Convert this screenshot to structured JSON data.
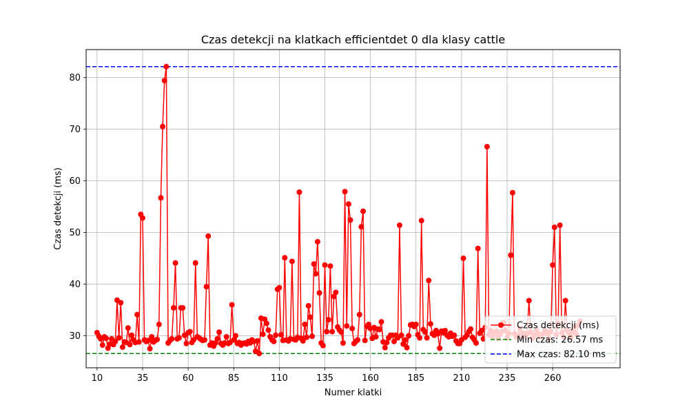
{
  "chart_data": {
    "type": "line",
    "title": "Czas detekcji na klatkach efficientdet 0 dla klasy cattle",
    "xlabel": "Numer klatki",
    "ylabel": "Czas detekcji (ms)",
    "xlim": [
      4,
      297
    ],
    "ylim": [
      23.8,
      85.4
    ],
    "xticks": [
      10,
      35,
      60,
      85,
      110,
      135,
      160,
      185,
      210,
      235,
      260
    ],
    "yticks": [
      30,
      40,
      50,
      60,
      70,
      80
    ],
    "grid": true,
    "legend_position": "lower-right",
    "series": [
      {
        "name": "Czas detekcji (ms)",
        "color": "#ff0000",
        "marker": "circle",
        "x_start": 10,
        "values": [
          30.6,
          29.9,
          29.4,
          28.2,
          29.8,
          29.5,
          27.6,
          28.4,
          29.4,
          28.3,
          28.9,
          36.9,
          29.6,
          36.4,
          27.8,
          28.8,
          28.7,
          31.5,
          28.3,
          30.1,
          29.2,
          28.7,
          34.1,
          28.8,
          53.5,
          52.8,
          29.2,
          28.9,
          29.1,
          27.5,
          29.8,
          28.8,
          29.1,
          29.3,
          32.2,
          56.7,
          70.5,
          79.4,
          82.1,
          28.6,
          29.1,
          29.4,
          35.4,
          44.1,
          29.4,
          29.6,
          35.4,
          35.4,
          30.1,
          28.5,
          30.6,
          30.8,
          28.7,
          29.2,
          44.1,
          29.8,
          29.6,
          29.3,
          29.1,
          29.2,
          39.5,
          49.3,
          28.2,
          28.6,
          28.0,
          28.6,
          29.4,
          30.7,
          28.5,
          28.2,
          28.6,
          29.8,
          28.5,
          28.7,
          36.0,
          29.2,
          30.0,
          28.5,
          28.7,
          28.2,
          28.5,
          28.6,
          28.4,
          28.9,
          28.6,
          29.2,
          28.9,
          27.0,
          29.0,
          26.57,
          33.4,
          30.3,
          33.2,
          32.4,
          31.1,
          29.8,
          29.2,
          28.9,
          30.1,
          39.0,
          39.3,
          30.2,
          29.1,
          45.1,
          29.2,
          29.0,
          29.4,
          44.4,
          29.3,
          29.2,
          29.7,
          57.8,
          29.5,
          29.0,
          32.2,
          29.7,
          35.8,
          33.6,
          29.9,
          43.9,
          42.0,
          48.2,
          38.3,
          28.6,
          28.1,
          43.7,
          30.8,
          33.1,
          43.5,
          30.8,
          37.6,
          38.4,
          31.7,
          31.1,
          30.7,
          28.6,
          57.9,
          31.9,
          55.5,
          52.4,
          31.4,
          28.5,
          28.9,
          29.2,
          34.1,
          51.1,
          54.1,
          29.1,
          31.8,
          32.2,
          31.4,
          29.5,
          31.6,
          29.8,
          31.3,
          31.2,
          32.7,
          28.8,
          27.7,
          28.7,
          29.6,
          30.1,
          30.1,
          28.9,
          30.1,
          29.6,
          51.4,
          30.1,
          28.4,
          29.2,
          27.7,
          30.0,
          32.1,
          32.2,
          31.8,
          32.2,
          30.2,
          29.6,
          52.3,
          31.2,
          30.7,
          29.6,
          40.7,
          32.3,
          30.4,
          30.1,
          31.0,
          30.4,
          27.6,
          30.9,
          30.6,
          31.0,
          30.1,
          29.8,
          30.5,
          29.9,
          30.1,
          29.0,
          28.5,
          28.5,
          29.2,
          45.0,
          29.7,
          30.1,
          30.8,
          31.3,
          29.7,
          29.2,
          28.6,
          46.9,
          30.5,
          31.0,
          29.4,
          31.6,
          66.6,
          30.2,
          31.0,
          29.9,
          30.4,
          30.9,
          29.5,
          30.2,
          30.8,
          32.6,
          31.0,
          29.6,
          30.4,
          45.6,
          57.7,
          30.4,
          29.7,
          30.1,
          31.4,
          29.8,
          30.5,
          30.0,
          30.4,
          36.8,
          30.7,
          29.6,
          30.1,
          31.1,
          30.4,
          29.8,
          30.2,
          30.5,
          31.0,
          30.4,
          29.5,
          30.8,
          43.7,
          51.0,
          30.2,
          32.4,
          51.4,
          30.6,
          29.8,
          36.8,
          31.0,
          30.4,
          29.7,
          30.8,
          31.8,
          30.2,
          32.0,
          32.8
        ]
      }
    ],
    "reference_lines": [
      {
        "name": "Min czas: 26.57 ms",
        "value": 26.57,
        "color": "#008000",
        "style": "dashed"
      },
      {
        "name": "Max czas: 82.10 ms",
        "value": 82.1,
        "color": "#0000ff",
        "style": "dashed"
      }
    ]
  }
}
